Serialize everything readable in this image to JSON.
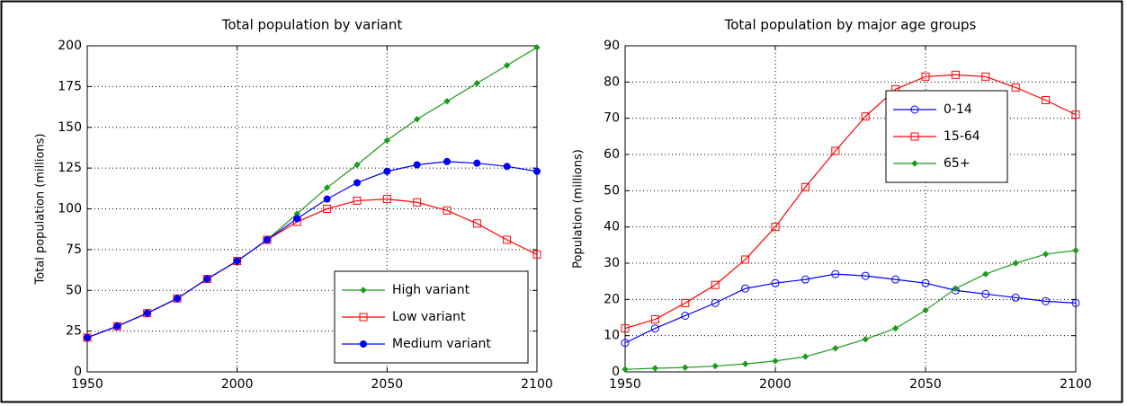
{
  "chart_data": [
    {
      "type": "line",
      "title": "Total population by variant",
      "y_label": "Total population (millions)",
      "x": [
        1950,
        1960,
        1970,
        1980,
        1990,
        2000,
        2010,
        2020,
        2030,
        2040,
        2050,
        2060,
        2070,
        2080,
        2090,
        2100
      ],
      "xlim": [
        1950,
        2100
      ],
      "xticks": [
        1950,
        2000,
        2050,
        2100
      ],
      "ylim": [
        0,
        200
      ],
      "yticks": [
        0,
        25,
        50,
        75,
        100,
        125,
        150,
        175,
        200
      ],
      "grid": true,
      "legend": "lower right",
      "series": [
        {
          "name": "High variant",
          "color": "#1f9a1f",
          "marker": "diamond",
          "values": [
            21,
            28,
            36,
            45,
            57,
            68,
            81,
            97,
            113,
            127,
            142,
            155,
            166,
            177,
            188,
            199
          ]
        },
        {
          "name": "Low variant",
          "color": "#ff0000",
          "marker": "square",
          "values": [
            21,
            28,
            36,
            45,
            57,
            68,
            81,
            92,
            100,
            105,
            106,
            104,
            99,
            91,
            81,
            72
          ]
        },
        {
          "name": "Medium variant",
          "color": "#0000ff",
          "marker": "dot",
          "values": [
            21,
            28,
            36,
            45,
            57,
            68,
            81,
            94,
            106,
            116,
            123,
            127,
            129,
            128,
            126,
            123
          ]
        }
      ]
    },
    {
      "type": "line",
      "title": "Total population by major age groups",
      "y_label": "Population (millions)",
      "x": [
        1950,
        1960,
        1970,
        1980,
        1990,
        2000,
        2010,
        2020,
        2030,
        2040,
        2050,
        2060,
        2070,
        2080,
        2090,
        2100
      ],
      "xlim": [
        1950,
        2100
      ],
      "xticks": [
        1950,
        2000,
        2050,
        2100
      ],
      "ylim": [
        0,
        90
      ],
      "yticks": [
        0,
        10,
        20,
        30,
        40,
        50,
        60,
        70,
        80,
        90
      ],
      "grid": true,
      "legend": "upper right",
      "series": [
        {
          "name": "0-14",
          "color": "#0000ff",
          "marker": "circle",
          "values": [
            8,
            12,
            15.5,
            19,
            23,
            24.5,
            25.5,
            27,
            26.5,
            25.5,
            24.5,
            22.5,
            21.5,
            20.5,
            19.5,
            19
          ]
        },
        {
          "name": "15-64",
          "color": "#ff0000",
          "marker": "square",
          "values": [
            12,
            14.5,
            19,
            24,
            31,
            40,
            51,
            61,
            70.5,
            78,
            81.5,
            82,
            81.5,
            78.5,
            75,
            71
          ]
        },
        {
          "name": "65+",
          "color": "#1f9a1f",
          "marker": "diamond",
          "values": [
            0.7,
            1,
            1.2,
            1.6,
            2.2,
            3,
            4.2,
            6.5,
            9,
            12,
            17,
            23,
            27,
            30,
            32.5,
            33.5
          ]
        }
      ]
    }
  ]
}
